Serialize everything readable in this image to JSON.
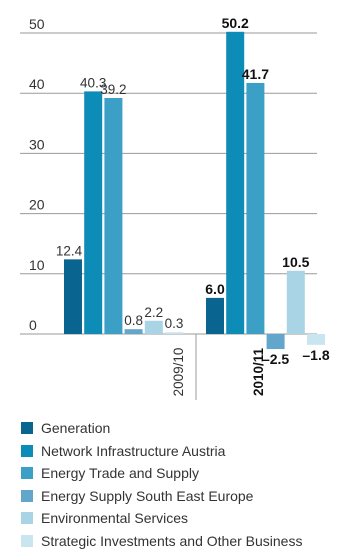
{
  "chart_data": {
    "type": "bar",
    "title": "",
    "xlabel": "",
    "ylabel": "",
    "ylim": [
      0,
      50
    ],
    "y_ticks": [
      0,
      10,
      20,
      30,
      40,
      50
    ],
    "grid": true,
    "legend_position": "bottom",
    "categories": [
      "2009/10",
      "2010/11"
    ],
    "category_bold": [
      false,
      true
    ],
    "series": [
      {
        "name": "Generation",
        "values": [
          12.4,
          6.0
        ],
        "labels": [
          "12.4",
          "6.0"
        ],
        "color": "#0a6490"
      },
      {
        "name": "Network Infrastructure Austria",
        "values": [
          40.3,
          50.2
        ],
        "labels": [
          "40.3",
          "50.2"
        ],
        "color": "#0e8cb8"
      },
      {
        "name": "Energy Trade and Supply",
        "values": [
          39.2,
          41.7
        ],
        "labels": [
          "39.2",
          "41.7"
        ],
        "color": "#3c9fc6"
      },
      {
        "name": "Energy Supply South East Europe",
        "values": [
          0.8,
          -2.5
        ],
        "labels": [
          "0.8",
          "–2.5"
        ],
        "color": "#63a6cc"
      },
      {
        "name": "Environmental Services",
        "values": [
          2.2,
          10.5
        ],
        "labels": [
          "2.2",
          "10.5"
        ],
        "color": "#a8d4e6"
      },
      {
        "name": "Strategic Investments and Other Business",
        "values": [
          0.3,
          -1.8
        ],
        "labels": [
          "0.3",
          "–1.8"
        ],
        "color": "#c9e5f0"
      }
    ]
  }
}
